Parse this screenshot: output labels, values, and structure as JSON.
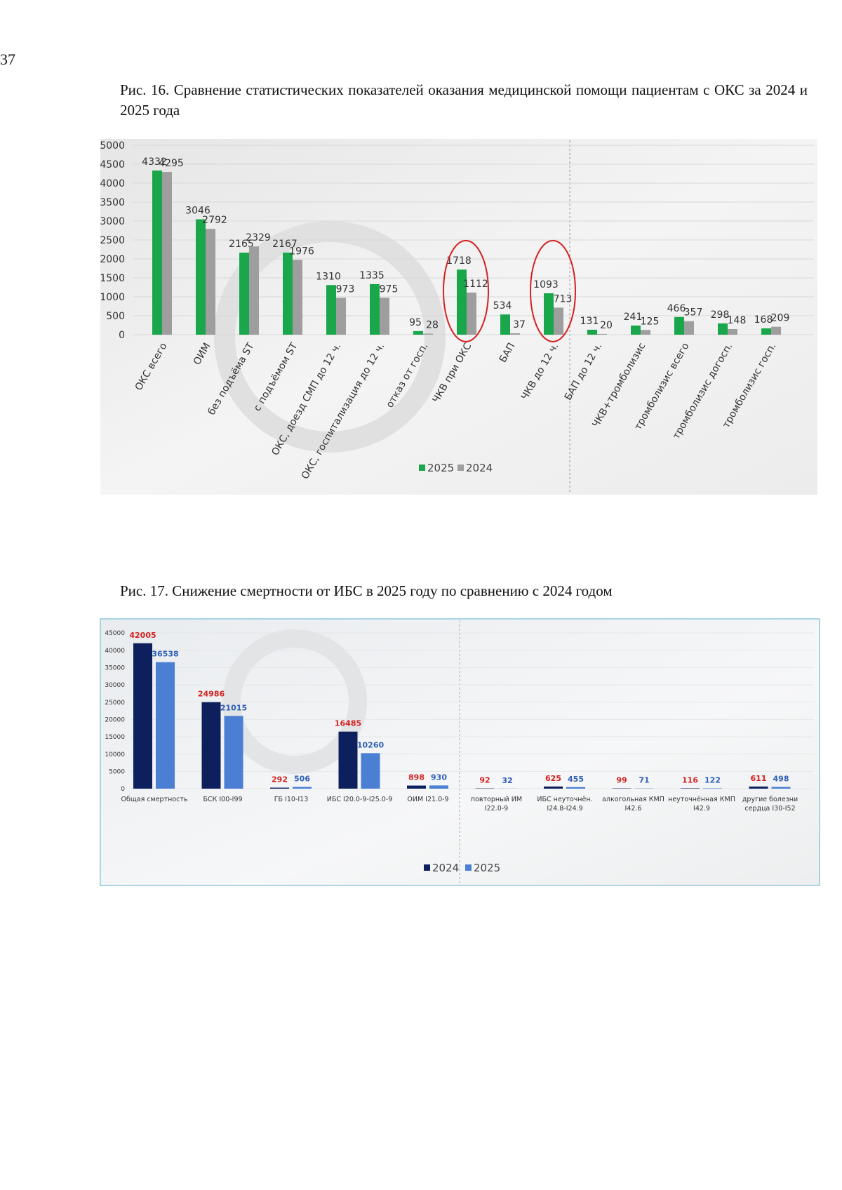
{
  "page_number": "37",
  "chart_data": [
    {
      "type": "bar",
      "title": "Рис. 16. Сравнение статистических показателей оказания медицинской помощи пациентам с ОКС за 2024 и 2025 года",
      "categories": [
        "ОКС всего",
        "ОИМ",
        "без подъёма ST",
        "с подъёмом ST",
        "ОКС, доезд СМП до 12 ч.",
        "ОКС, госпитализация до 12 ч.",
        "отказ от госп.",
        "ЧКВ при ОКС",
        "БАП",
        "ЧКВ до 12 ч.",
        "БАП до 12 ч.",
        "ЧКВ+тромболизис",
        "тромболизис всего",
        "тромболизис догосп.",
        "тромболизис госп."
      ],
      "series": [
        {
          "name": "2025",
          "color": "#1aa64a",
          "values": [
            4332,
            3046,
            2165,
            2167,
            1310,
            1335,
            95,
            1718,
            534,
            1093,
            131,
            241,
            466,
            298,
            168
          ]
        },
        {
          "name": "2024",
          "color": "#9e9e9e",
          "values": [
            4295,
            2792,
            2329,
            1976,
            973,
            975,
            28,
            1112,
            37,
            713,
            20,
            125,
            357,
            148,
            209
          ]
        }
      ],
      "ylim": [
        0,
        5000
      ],
      "yticks": [
        0,
        500,
        1000,
        1500,
        2000,
        2500,
        3000,
        3500,
        4000,
        4500,
        5000
      ],
      "grid": true,
      "legend": "bottom"
    },
    {
      "type": "bar",
      "title": "Рис. 17. Снижение смертности от ИБС в 2025 году по сравнению с 2024 годом",
      "categories": [
        "Общая смертность",
        "БСК I00-I99",
        "ГБ I10-I13",
        "ИБС I20.0-9-I25.0-9",
        "ОИМ I21.0-9",
        "повторный ИМ I22.0-9",
        "ИБС неуточнён. I24.8-I24.9",
        "алкогольная КМП I42.6",
        "неуточнённая КМП I42.9",
        "другие болезни сердца I30-I52"
      ],
      "series": [
        {
          "name": "2024",
          "color": "#0d1f5c",
          "label_color": "#d42020",
          "values": [
            42005,
            24986,
            292,
            16485,
            898,
            92,
            625,
            99,
            116,
            611
          ]
        },
        {
          "name": "2025",
          "color": "#4a7fd4",
          "label_color": "#2f5fb8",
          "values": [
            36538,
            21015,
            506,
            10260,
            930,
            32,
            455,
            71,
            122,
            498
          ]
        }
      ],
      "ylim": [
        0,
        45000
      ],
      "yticks": [
        0,
        5000,
        10000,
        15000,
        20000,
        25000,
        30000,
        35000,
        40000,
        45000
      ],
      "grid": true,
      "legend": "bottom"
    }
  ]
}
